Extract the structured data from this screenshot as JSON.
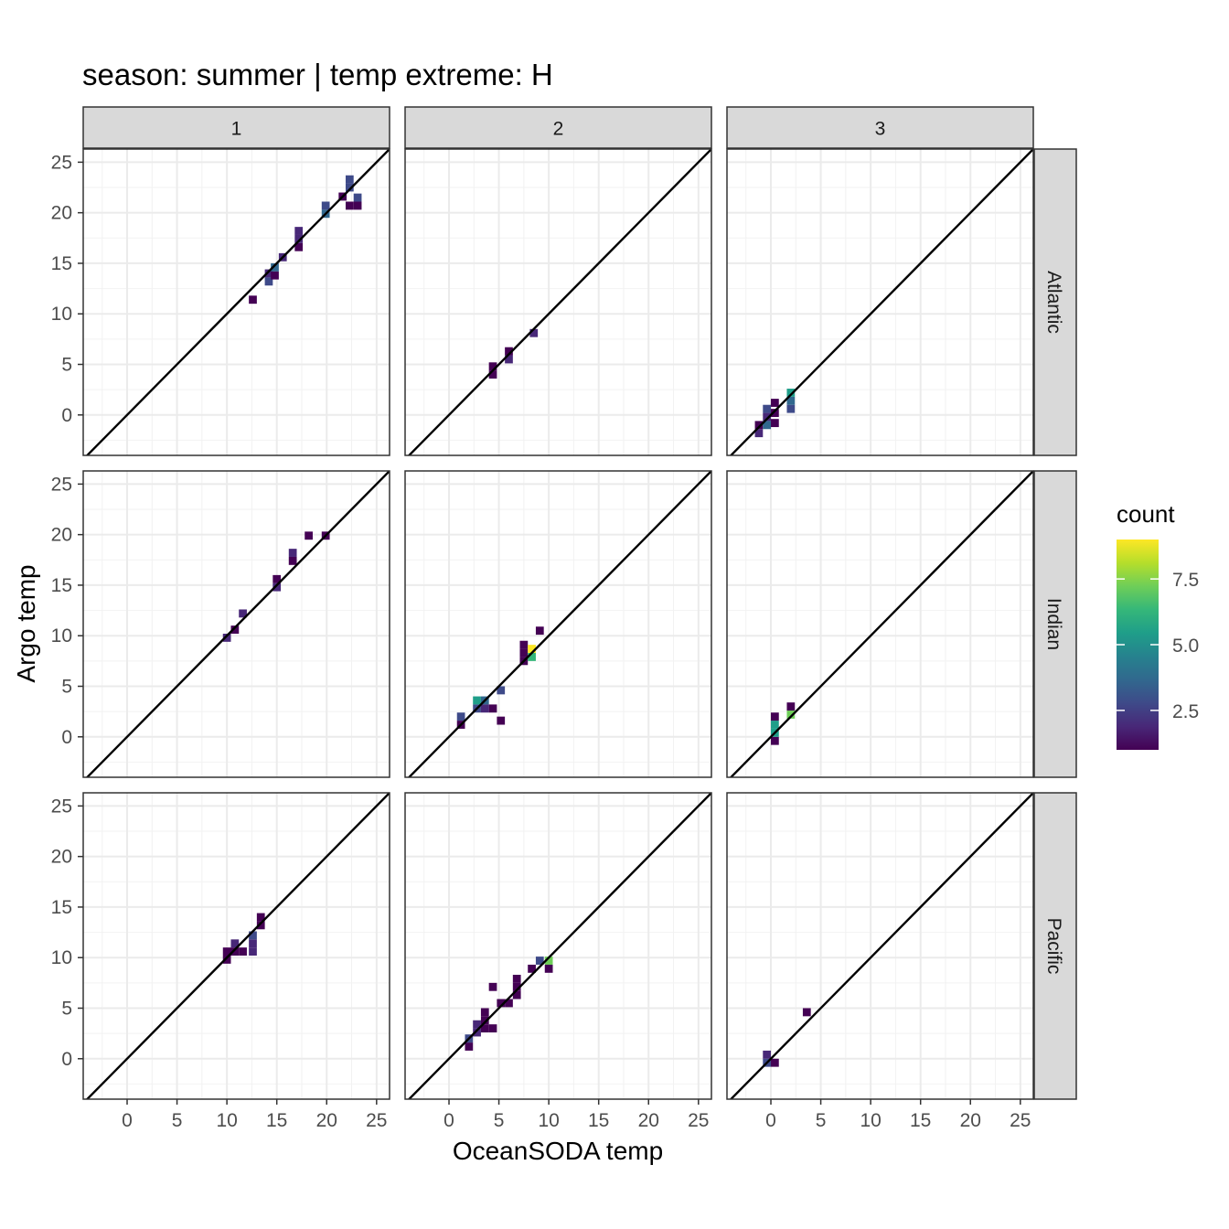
{
  "chart_data": {
    "type": "heatmap",
    "title": "season: summer | temp extreme: H",
    "xlabel": "OceanSODA temp",
    "ylabel": "Argo temp",
    "xlim": [
      -4.4,
      26.3
    ],
    "ylim": [
      -4.0,
      26.3
    ],
    "x_ticks": [
      0,
      5,
      10,
      15,
      20,
      25
    ],
    "y_ticks": [
      0,
      5,
      10,
      15,
      20,
      25
    ],
    "bin_width": 0.8,
    "bin_height": 0.8,
    "columns": [
      "1",
      "2",
      "3"
    ],
    "rows": [
      "Atlantic",
      "Indian",
      "Pacific"
    ],
    "reference_line": "y = x",
    "grid": true,
    "legend": {
      "title": "count",
      "position": "right",
      "range": [
        1,
        9
      ],
      "ticks": [
        2.5,
        5.0,
        7.5
      ],
      "tick_labels": [
        "2.5",
        "5.0",
        "7.5"
      ],
      "colors": [
        "#440154",
        "#482878",
        "#3e4a89",
        "#31688e",
        "#26828e",
        "#1f9e89",
        "#35b779",
        "#6ece58",
        "#b5de2b",
        "#fde725"
      ]
    },
    "panels": [
      {
        "col": "1",
        "row": "Atlantic",
        "cells": [
          [
            12.6,
            11.4,
            1
          ],
          [
            14.2,
            13.2,
            3
          ],
          [
            14.2,
            14.0,
            2
          ],
          [
            14.8,
            13.8,
            1
          ],
          [
            14.8,
            14.6,
            4
          ],
          [
            15.6,
            15.6,
            2
          ],
          [
            17.2,
            16.6,
            1
          ],
          [
            17.2,
            17.4,
            2
          ],
          [
            17.2,
            18.2,
            2
          ],
          [
            19.9,
            19.9,
            4
          ],
          [
            19.9,
            20.7,
            3
          ],
          [
            21.6,
            21.6,
            1
          ],
          [
            22.3,
            20.7,
            1
          ],
          [
            22.3,
            22.5,
            3
          ],
          [
            22.3,
            23.3,
            3
          ],
          [
            23.1,
            20.7,
            1
          ],
          [
            23.1,
            21.5,
            3
          ]
        ]
      },
      {
        "col": "2",
        "row": "Atlantic",
        "cells": [
          [
            4.4,
            4.0,
            1
          ],
          [
            4.4,
            4.8,
            1
          ],
          [
            6.0,
            5.5,
            2
          ],
          [
            6.0,
            6.3,
            1
          ],
          [
            8.5,
            8.1,
            2
          ]
        ]
      },
      {
        "col": "3",
        "row": "Atlantic",
        "cells": [
          [
            -1.2,
            -1.8,
            2
          ],
          [
            -1.2,
            -1.0,
            1
          ],
          [
            -0.4,
            -0.2,
            2
          ],
          [
            -0.4,
            -1.0,
            4
          ],
          [
            -0.4,
            0.6,
            3
          ],
          [
            0.4,
            -0.8,
            1
          ],
          [
            0.4,
            0.2,
            1
          ],
          [
            0.4,
            1.2,
            1
          ],
          [
            2.0,
            0.6,
            3
          ],
          [
            2.0,
            1.4,
            4
          ],
          [
            2.0,
            2.2,
            5
          ]
        ]
      },
      {
        "col": "1",
        "row": "Indian",
        "cells": [
          [
            10.0,
            9.8,
            2
          ],
          [
            10.8,
            10.6,
            1
          ],
          [
            11.6,
            12.2,
            2
          ],
          [
            15.0,
            14.8,
            2
          ],
          [
            15.0,
            15.6,
            1
          ],
          [
            16.6,
            17.4,
            1
          ],
          [
            16.6,
            18.2,
            2
          ],
          [
            18.2,
            19.9,
            1
          ],
          [
            19.9,
            19.9,
            1
          ]
        ]
      },
      {
        "col": "2",
        "row": "Indian",
        "cells": [
          [
            1.2,
            1.2,
            1
          ],
          [
            1.2,
            2.0,
            3
          ],
          [
            2.8,
            2.8,
            3
          ],
          [
            2.8,
            3.6,
            5
          ],
          [
            3.6,
            3.6,
            4
          ],
          [
            3.6,
            2.8,
            2
          ],
          [
            4.4,
            2.8,
            1
          ],
          [
            5.2,
            1.6,
            1
          ],
          [
            5.2,
            4.6,
            3
          ],
          [
            7.5,
            7.5,
            1
          ],
          [
            7.5,
            8.3,
            1
          ],
          [
            7.5,
            9.1,
            1
          ],
          [
            8.3,
            7.9,
            6
          ],
          [
            8.3,
            8.7,
            9
          ],
          [
            9.1,
            10.5,
            1
          ]
        ]
      },
      {
        "col": "3",
        "row": "Indian",
        "cells": [
          [
            0.4,
            -0.4,
            1
          ],
          [
            0.4,
            0.4,
            5
          ],
          [
            0.4,
            1.2,
            5
          ],
          [
            0.4,
            2.0,
            1
          ],
          [
            2.0,
            2.2,
            7
          ],
          [
            2.0,
            3.0,
            1
          ]
        ]
      },
      {
        "col": "1",
        "row": "Pacific",
        "cells": [
          [
            10.0,
            9.8,
            1
          ],
          [
            10.0,
            10.6,
            1
          ],
          [
            10.8,
            10.6,
            1
          ],
          [
            10.8,
            11.4,
            2
          ],
          [
            11.6,
            10.6,
            1
          ],
          [
            12.6,
            10.6,
            2
          ],
          [
            12.6,
            11.4,
            2
          ],
          [
            12.6,
            12.2,
            3
          ],
          [
            13.4,
            13.2,
            1
          ],
          [
            13.4,
            14.0,
            1
          ]
        ]
      },
      {
        "col": "2",
        "row": "Pacific",
        "cells": [
          [
            2.0,
            1.2,
            1
          ],
          [
            2.0,
            2.0,
            3
          ],
          [
            2.8,
            2.6,
            2
          ],
          [
            2.8,
            3.4,
            2
          ],
          [
            3.6,
            3.0,
            1
          ],
          [
            3.6,
            3.8,
            1
          ],
          [
            3.6,
            4.6,
            1
          ],
          [
            4.4,
            3.0,
            1
          ],
          [
            4.4,
            7.1,
            1
          ],
          [
            5.2,
            5.5,
            1
          ],
          [
            6.0,
            5.5,
            1
          ],
          [
            6.8,
            6.3,
            1
          ],
          [
            6.8,
            7.1,
            1
          ],
          [
            6.8,
            7.9,
            1
          ],
          [
            8.3,
            8.9,
            1
          ],
          [
            9.1,
            9.7,
            3
          ],
          [
            10.0,
            9.7,
            7
          ],
          [
            10.0,
            8.9,
            1
          ]
        ]
      },
      {
        "col": "3",
        "row": "Pacific",
        "cells": [
          [
            -0.4,
            -0.4,
            3
          ],
          [
            -0.4,
            0.4,
            2
          ],
          [
            0.4,
            -0.4,
            1
          ],
          [
            3.6,
            4.6,
            1
          ]
        ]
      }
    ]
  }
}
